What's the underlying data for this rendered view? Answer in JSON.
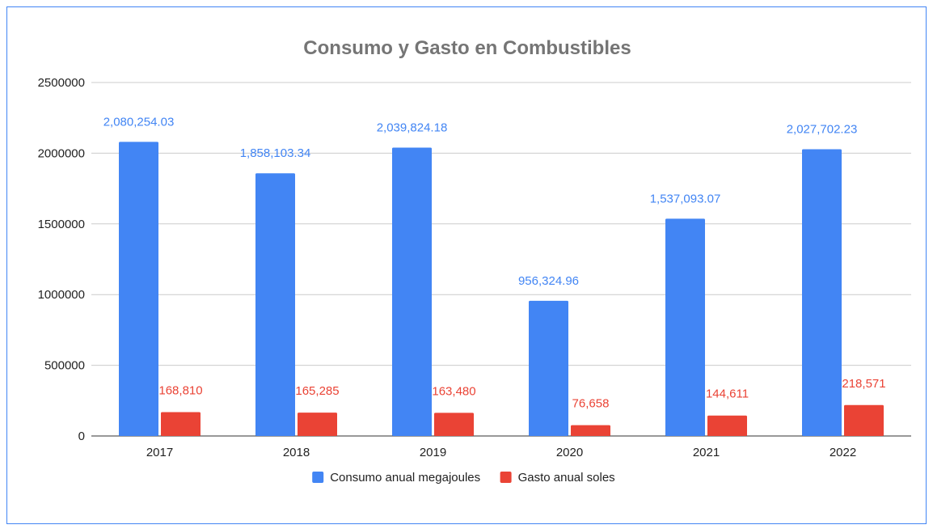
{
  "chart_data": {
    "type": "bar",
    "title": "Consumo y Gasto en Combustibles",
    "xlabel": "",
    "ylabel": "",
    "categories": [
      "2017",
      "2018",
      "2019",
      "2020",
      "2021",
      "2022"
    ],
    "ylim": [
      0,
      2500000
    ],
    "yticks": [
      0,
      500000,
      1000000,
      1500000,
      2000000,
      2500000
    ],
    "ytick_labels": [
      "0",
      "500000",
      "1000000",
      "1500000",
      "2000000",
      "2500000"
    ],
    "grid": true,
    "legend_position": "bottom",
    "series": [
      {
        "name": "Consumo anual megajoules",
        "color": "#4285f4",
        "values": [
          2080254.03,
          1858103.34,
          2039824.18,
          956324.96,
          1537093.07,
          2027702.23
        ],
        "labels": [
          "2,080,254.03",
          "1,858,103.34",
          "2,039,824.18",
          "956,324.96",
          "1,537,093.07",
          "2,027,702.23"
        ]
      },
      {
        "name": "Gasto anual soles",
        "color": "#ea4335",
        "values": [
          168810,
          165285,
          163480,
          76658,
          144611,
          218571
        ],
        "labels": [
          "168,810",
          "165,285",
          "163,480",
          "76,658",
          "144,611",
          "218,571"
        ]
      }
    ]
  }
}
